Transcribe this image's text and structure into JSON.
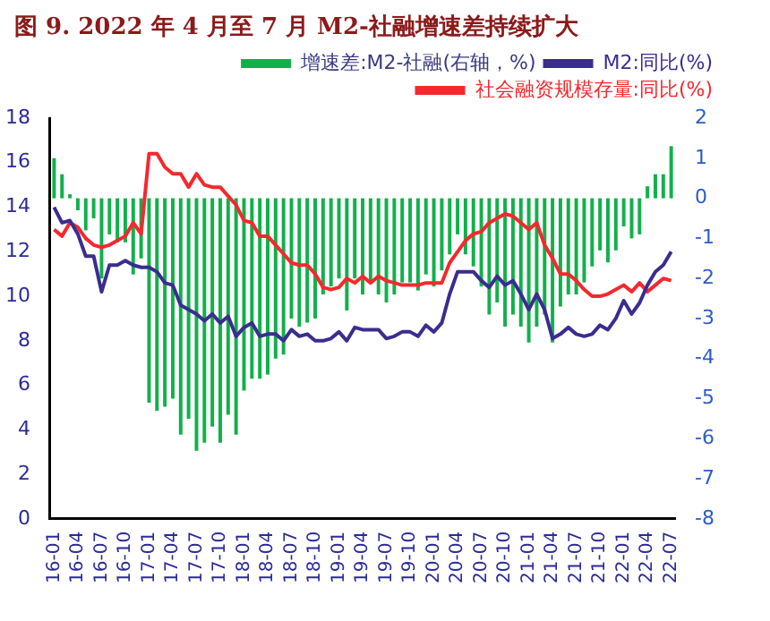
{
  "chart_data": {
    "type": "bar",
    "title": "图 9. 2022 年 4 月至 7 月 M2-社融增速差持续扩大",
    "categories": [
      "16-01",
      null,
      null,
      "16-04",
      null,
      null,
      "16-07",
      null,
      null,
      "16-10",
      null,
      null,
      "17-01",
      null,
      null,
      "17-04",
      null,
      null,
      "17-07",
      null,
      null,
      "17-10",
      null,
      null,
      "18-01",
      null,
      null,
      "18-04",
      null,
      null,
      "18-07",
      null,
      null,
      "18-10",
      null,
      null,
      "19-01",
      null,
      null,
      "19-04",
      null,
      null,
      "19-07",
      null,
      null,
      "19-10",
      null,
      null,
      "20-01",
      null,
      null,
      "20-04",
      null,
      null,
      "20-07",
      null,
      null,
      "20-10",
      null,
      null,
      "21-01",
      null,
      null,
      "21-04",
      null,
      null,
      "21-07",
      null,
      null,
      "21-10",
      null,
      null,
      "22-01",
      null,
      null,
      "22-04",
      null,
      null,
      "22-07"
    ],
    "series": [
      {
        "name": "增速差:M2-社融(右轴，%)",
        "axis": "y2",
        "color": "#12b04b",
        "values": [
          1.0,
          0.6,
          0.1,
          -0.3,
          -0.8,
          -0.5,
          -2.0,
          -0.9,
          -1.1,
          -1.1,
          -1.9,
          -1.5,
          -5.1,
          -5.3,
          -5.2,
          -5.0,
          -5.9,
          -5.5,
          -6.3,
          -6.1,
          -5.7,
          -6.1,
          -5.4,
          -5.9,
          -4.8,
          -4.5,
          -4.5,
          -4.4,
          -4.0,
          -3.9,
          -3.0,
          -3.2,
          -3.1,
          -3.0,
          -2.4,
          -2.2,
          -2.0,
          -2.8,
          -2.0,
          -2.4,
          -2.1,
          -2.4,
          -2.6,
          -2.4,
          -2.1,
          -2.1,
          -2.3,
          -1.9,
          -2.2,
          -1.8,
          -1.4,
          -0.9,
          -1.4,
          -1.7,
          -2.2,
          -2.9,
          -2.6,
          -3.2,
          -2.9,
          -3.2,
          -3.6,
          -3.2,
          -2.9,
          -3.6,
          -2.7,
          -2.4,
          -2.4,
          -2.1,
          -1.7,
          -1.3,
          -1.6,
          -1.3,
          -0.7,
          -1.0,
          -0.9,
          0.3,
          0.6,
          0.6,
          1.3
        ]
      },
      {
        "name": "M2:同比(%)",
        "type": "line",
        "color": "#3a2d8f",
        "values": [
          14.0,
          13.3,
          13.4,
          12.8,
          11.8,
          11.8,
          10.2,
          11.4,
          11.4,
          11.6,
          11.4,
          11.3,
          11.3,
          11.1,
          10.6,
          10.5,
          9.6,
          9.4,
          9.2,
          8.9,
          9.2,
          8.8,
          9.1,
          8.2,
          8.6,
          8.8,
          8.2,
          8.3,
          8.3,
          8.0,
          8.5,
          8.2,
          8.3,
          8.0,
          8.0,
          8.1,
          8.4,
          8.0,
          8.6,
          8.5,
          8.5,
          8.5,
          8.1,
          8.2,
          8.4,
          8.4,
          8.2,
          8.7,
          8.4,
          8.8,
          10.1,
          11.1,
          11.1,
          11.1,
          10.7,
          10.4,
          10.9,
          10.5,
          10.7,
          10.1,
          9.4,
          10.1,
          9.4,
          8.1,
          8.3,
          8.6,
          8.3,
          8.2,
          8.3,
          8.7,
          8.5,
          9.0,
          9.8,
          9.2,
          9.7,
          10.5,
          11.1,
          11.4,
          12.0
        ]
      },
      {
        "name": "社会融资规模存量:同比(%)",
        "type": "line",
        "color": "#f5282d",
        "values": [
          13.0,
          12.7,
          13.3,
          13.1,
          12.6,
          12.3,
          12.2,
          12.3,
          12.5,
          12.7,
          13.3,
          12.8,
          16.4,
          16.4,
          15.8,
          15.5,
          15.5,
          14.9,
          15.5,
          15.0,
          14.9,
          14.9,
          14.5,
          14.1,
          13.4,
          13.3,
          12.7,
          12.7,
          12.3,
          11.9,
          11.5,
          11.4,
          11.4,
          11.0,
          10.4,
          10.3,
          10.4,
          10.8,
          10.6,
          10.9,
          10.6,
          10.9,
          10.7,
          10.6,
          10.5,
          10.5,
          10.5,
          10.6,
          10.6,
          10.6,
          11.5,
          12.0,
          12.5,
          12.8,
          12.9,
          13.3,
          13.5,
          13.7,
          13.6,
          13.3,
          13.0,
          13.3,
          12.3,
          11.7,
          11.0,
          11.0,
          10.7,
          10.3,
          10.0,
          10.0,
          10.1,
          10.3,
          10.5,
          10.2,
          10.6,
          10.2,
          10.5,
          10.8,
          10.7
        ]
      }
    ],
    "ylim": [
      0,
      18
    ],
    "yticks": [
      0,
      2,
      4,
      6,
      8,
      10,
      12,
      14,
      16,
      18
    ],
    "y2lim": [
      -8,
      2
    ],
    "y2ticks": [
      -8,
      -7,
      -6,
      -5,
      -4,
      -3,
      -2,
      -1,
      0,
      1,
      2
    ],
    "grid": false,
    "legend": "top right"
  }
}
